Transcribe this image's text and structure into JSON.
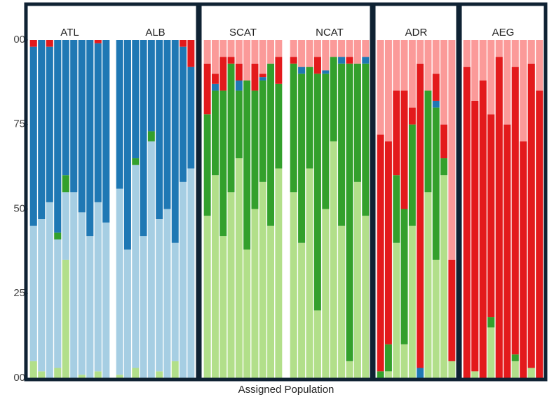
{
  "xlabel": "Assigned Population",
  "chart_data": [
    {
      "type": "stacked_bar",
      "title": "ATL",
      "categories": [
        null,
        null,
        null,
        null,
        null,
        null,
        null,
        null,
        null,
        null
      ],
      "ylim": [
        0,
        100
      ],
      "yticks": [
        {
          "value": 0,
          "label": "00"
        },
        25,
        50,
        75,
        {
          "value": 100,
          "label": "00"
        }
      ],
      "series": [
        {
          "color": "#b2df8a",
          "values": [
            5,
            2,
            0,
            3,
            35,
            0,
            1,
            0,
            2,
            0
          ]
        },
        {
          "color": "#a6cee3",
          "values": [
            40,
            45,
            52,
            38,
            20,
            55,
            48,
            42,
            50,
            46
          ]
        },
        {
          "color": "#33a02c",
          "values": [
            0,
            0,
            0,
            2,
            5,
            0,
            0,
            0,
            0,
            0
          ]
        },
        {
          "color": "#1f78b4",
          "values": [
            53,
            53,
            46,
            57,
            40,
            45,
            51,
            58,
            47,
            54
          ]
        },
        {
          "color": "#e31a1c",
          "values": [
            2,
            0,
            2,
            0,
            0,
            0,
            0,
            0,
            1,
            0
          ]
        },
        {
          "color": "#fb9a99",
          "values": [
            0,
            0,
            0,
            0,
            0,
            0,
            0,
            0,
            0,
            0
          ]
        }
      ]
    },
    {
      "type": "stacked_bar",
      "title": "ALB",
      "categories": [
        null,
        null,
        null,
        null,
        null,
        null,
        null,
        null,
        null,
        null
      ],
      "ylim": [
        0,
        100
      ],
      "series": [
        {
          "color": "#b2df8a",
          "values": [
            1,
            0,
            3,
            0,
            0,
            2,
            0,
            5,
            0,
            0
          ]
        },
        {
          "color": "#a6cee3",
          "values": [
            55,
            38,
            60,
            42,
            70,
            45,
            50,
            35,
            58,
            62
          ]
        },
        {
          "color": "#33a02c",
          "values": [
            0,
            0,
            2,
            0,
            3,
            0,
            0,
            0,
            0,
            0
          ]
        },
        {
          "color": "#1f78b4",
          "values": [
            44,
            62,
            35,
            58,
            27,
            53,
            50,
            60,
            40,
            30
          ]
        },
        {
          "color": "#e31a1c",
          "values": [
            0,
            0,
            0,
            0,
            0,
            0,
            0,
            0,
            2,
            8
          ]
        },
        {
          "color": "#fb9a99",
          "values": [
            0,
            0,
            0,
            0,
            0,
            0,
            0,
            0,
            0,
            0
          ]
        }
      ]
    },
    {
      "type": "stacked_bar",
      "title": "SCAT",
      "categories": [
        null,
        null,
        null,
        null,
        null,
        null,
        null,
        null,
        null,
        null
      ],
      "ylim": [
        0,
        100
      ],
      "series": [
        {
          "color": "#b2df8a",
          "values": [
            48,
            60,
            42,
            55,
            65,
            38,
            50,
            58,
            45,
            62
          ]
        },
        {
          "color": "#a6cee3",
          "values": [
            0,
            0,
            0,
            0,
            0,
            0,
            0,
            0,
            0,
            0
          ]
        },
        {
          "color": "#33a02c",
          "values": [
            30,
            25,
            43,
            38,
            20,
            50,
            35,
            30,
            48,
            25
          ]
        },
        {
          "color": "#1f78b4",
          "values": [
            0,
            2,
            0,
            0,
            3,
            0,
            0,
            1,
            0,
            0
          ]
        },
        {
          "color": "#e31a1c",
          "values": [
            15,
            3,
            10,
            2,
            5,
            0,
            8,
            1,
            0,
            8
          ]
        },
        {
          "color": "#fb9a99",
          "values": [
            7,
            10,
            5,
            5,
            7,
            12,
            7,
            10,
            7,
            5
          ]
        }
      ]
    },
    {
      "type": "stacked_bar",
      "title": "NCAT",
      "categories": [
        null,
        null,
        null,
        null,
        null,
        null,
        null,
        null,
        null,
        null
      ],
      "ylim": [
        0,
        100
      ],
      "series": [
        {
          "color": "#b2df8a",
          "values": [
            55,
            40,
            62,
            20,
            50,
            70,
            45,
            5,
            58,
            48
          ]
        },
        {
          "color": "#a6cee3",
          "values": [
            0,
            0,
            0,
            0,
            0,
            0,
            0,
            0,
            0,
            0
          ]
        },
        {
          "color": "#33a02c",
          "values": [
            38,
            50,
            30,
            70,
            40,
            25,
            48,
            88,
            35,
            45
          ]
        },
        {
          "color": "#1f78b4",
          "values": [
            0,
            2,
            0,
            0,
            1,
            0,
            2,
            0,
            0,
            2
          ]
        },
        {
          "color": "#e31a1c",
          "values": [
            2,
            0,
            0,
            5,
            0,
            0,
            0,
            2,
            0,
            0
          ]
        },
        {
          "color": "#fb9a99",
          "values": [
            5,
            8,
            8,
            5,
            9,
            5,
            5,
            5,
            7,
            5
          ]
        }
      ]
    },
    {
      "type": "stacked_bar",
      "title": "ADR",
      "categories": [
        null,
        null,
        null,
        null,
        null,
        null,
        null,
        null,
        null,
        null
      ],
      "ylim": [
        0,
        100
      ],
      "series": [
        {
          "color": "#b2df8a",
          "values": [
            0,
            2,
            40,
            10,
            45,
            0,
            55,
            35,
            60,
            5
          ]
        },
        {
          "color": "#a6cee3",
          "values": [
            0,
            0,
            0,
            0,
            0,
            0,
            0,
            0,
            0,
            0
          ]
        },
        {
          "color": "#33a02c",
          "values": [
            2,
            8,
            20,
            40,
            30,
            0,
            30,
            45,
            5,
            0
          ]
        },
        {
          "color": "#1f78b4",
          "values": [
            0,
            0,
            0,
            0,
            0,
            3,
            0,
            2,
            0,
            0
          ]
        },
        {
          "color": "#e31a1c",
          "values": [
            70,
            60,
            25,
            35,
            5,
            90,
            0,
            8,
            10,
            30
          ]
        },
        {
          "color": "#fb9a99",
          "values": [
            28,
            30,
            15,
            15,
            20,
            7,
            15,
            10,
            25,
            65
          ]
        }
      ]
    },
    {
      "type": "stacked_bar",
      "title": "AEG",
      "categories": [
        null,
        null,
        null,
        null,
        null,
        null,
        null,
        null,
        null,
        null
      ],
      "ylim": [
        0,
        100
      ],
      "series": [
        {
          "color": "#b2df8a",
          "values": [
            0,
            2,
            0,
            15,
            0,
            0,
            5,
            0,
            3,
            0
          ]
        },
        {
          "color": "#a6cee3",
          "values": [
            0,
            0,
            0,
            0,
            0,
            0,
            0,
            0,
            0,
            0
          ]
        },
        {
          "color": "#33a02c",
          "values": [
            0,
            0,
            0,
            3,
            0,
            0,
            2,
            0,
            0,
            0
          ]
        },
        {
          "color": "#1f78b4",
          "values": [
            0,
            0,
            0,
            0,
            0,
            0,
            0,
            0,
            0,
            0
          ]
        },
        {
          "color": "#e31a1c",
          "values": [
            92,
            80,
            88,
            60,
            95,
            75,
            85,
            70,
            90,
            85
          ]
        },
        {
          "color": "#fb9a99",
          "values": [
            8,
            18,
            12,
            22,
            5,
            25,
            8,
            30,
            7,
            15
          ]
        }
      ]
    }
  ]
}
